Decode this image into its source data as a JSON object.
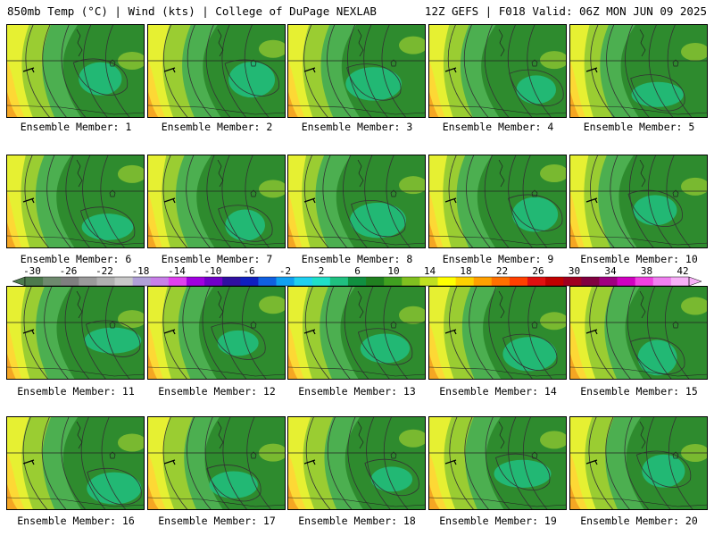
{
  "header": {
    "title_left": "850mb Temp (°C) | Wind (kts) | College of DuPage NEXLAB",
    "title_right": "12Z GEFS | F018 Valid: 06Z MON JUN 09 2025"
  },
  "panels": [
    {
      "label": "Ensemble Member: 1",
      "member": 1
    },
    {
      "label": "Ensemble Member: 2",
      "member": 2
    },
    {
      "label": "Ensemble Member: 3",
      "member": 3
    },
    {
      "label": "Ensemble Member: 4",
      "member": 4
    },
    {
      "label": "Ensemble Member: 5",
      "member": 5
    },
    {
      "label": "Ensemble Member: 6",
      "member": 6
    },
    {
      "label": "Ensemble Member: 7",
      "member": 7
    },
    {
      "label": "Ensemble Member: 8",
      "member": 8
    },
    {
      "label": "Ensemble Member: 9",
      "member": 9
    },
    {
      "label": "Ensemble Member: 10",
      "member": 10
    },
    {
      "label": "Ensemble Member: 11",
      "member": 11
    },
    {
      "label": "Ensemble Member: 12",
      "member": 12
    },
    {
      "label": "Ensemble Member: 13",
      "member": 13
    },
    {
      "label": "Ensemble Member: 14",
      "member": 14
    },
    {
      "label": "Ensemble Member: 15",
      "member": 15
    },
    {
      "label": "Ensemble Member: 16",
      "member": 16
    },
    {
      "label": "Ensemble Member: 17",
      "member": 17
    },
    {
      "label": "Ensemble Member: 18",
      "member": 18
    },
    {
      "label": "Ensemble Member: 19",
      "member": 19
    },
    {
      "label": "Ensemble Member: 20",
      "member": 20
    }
  ],
  "colorbar": {
    "ticks": [
      "-30",
      "-26",
      "-22",
      "-18",
      "-14",
      "-10",
      "-6",
      "-2",
      "2",
      "6",
      "10",
      "14",
      "18",
      "22",
      "26",
      "30",
      "34",
      "38",
      "42"
    ],
    "colors": [
      "#4d7a4d",
      "#6e8a6e",
      "#7f7f7f",
      "#9a9a9a",
      "#b0b0b0",
      "#c8c8c8",
      "#b0a0d8",
      "#c880e8",
      "#e040f0",
      "#a000e0",
      "#7000c8",
      "#3010a0",
      "#1020c0",
      "#1060e0",
      "#10a0f0",
      "#20d0f0",
      "#20e0c8",
      "#20c080",
      "#109040",
      "#208020",
      "#40a020",
      "#80c020",
      "#c0e020",
      "#ffff00",
      "#ffd000",
      "#ffa000",
      "#ff7000",
      "#ff4000",
      "#e01010",
      "#c00000",
      "#a00020",
      "#800040",
      "#a00080",
      "#d000c0",
      "#f040e0",
      "#f080f0",
      "#f8b0f8"
    ]
  },
  "palette": {
    "warm1": "#f5a623",
    "warm2": "#fdd835",
    "yellow": "#e6f032",
    "lime": "#9acd32",
    "green": "#4caf50",
    "dgreen": "#2e8b2e",
    "teal": "#20c080"
  }
}
